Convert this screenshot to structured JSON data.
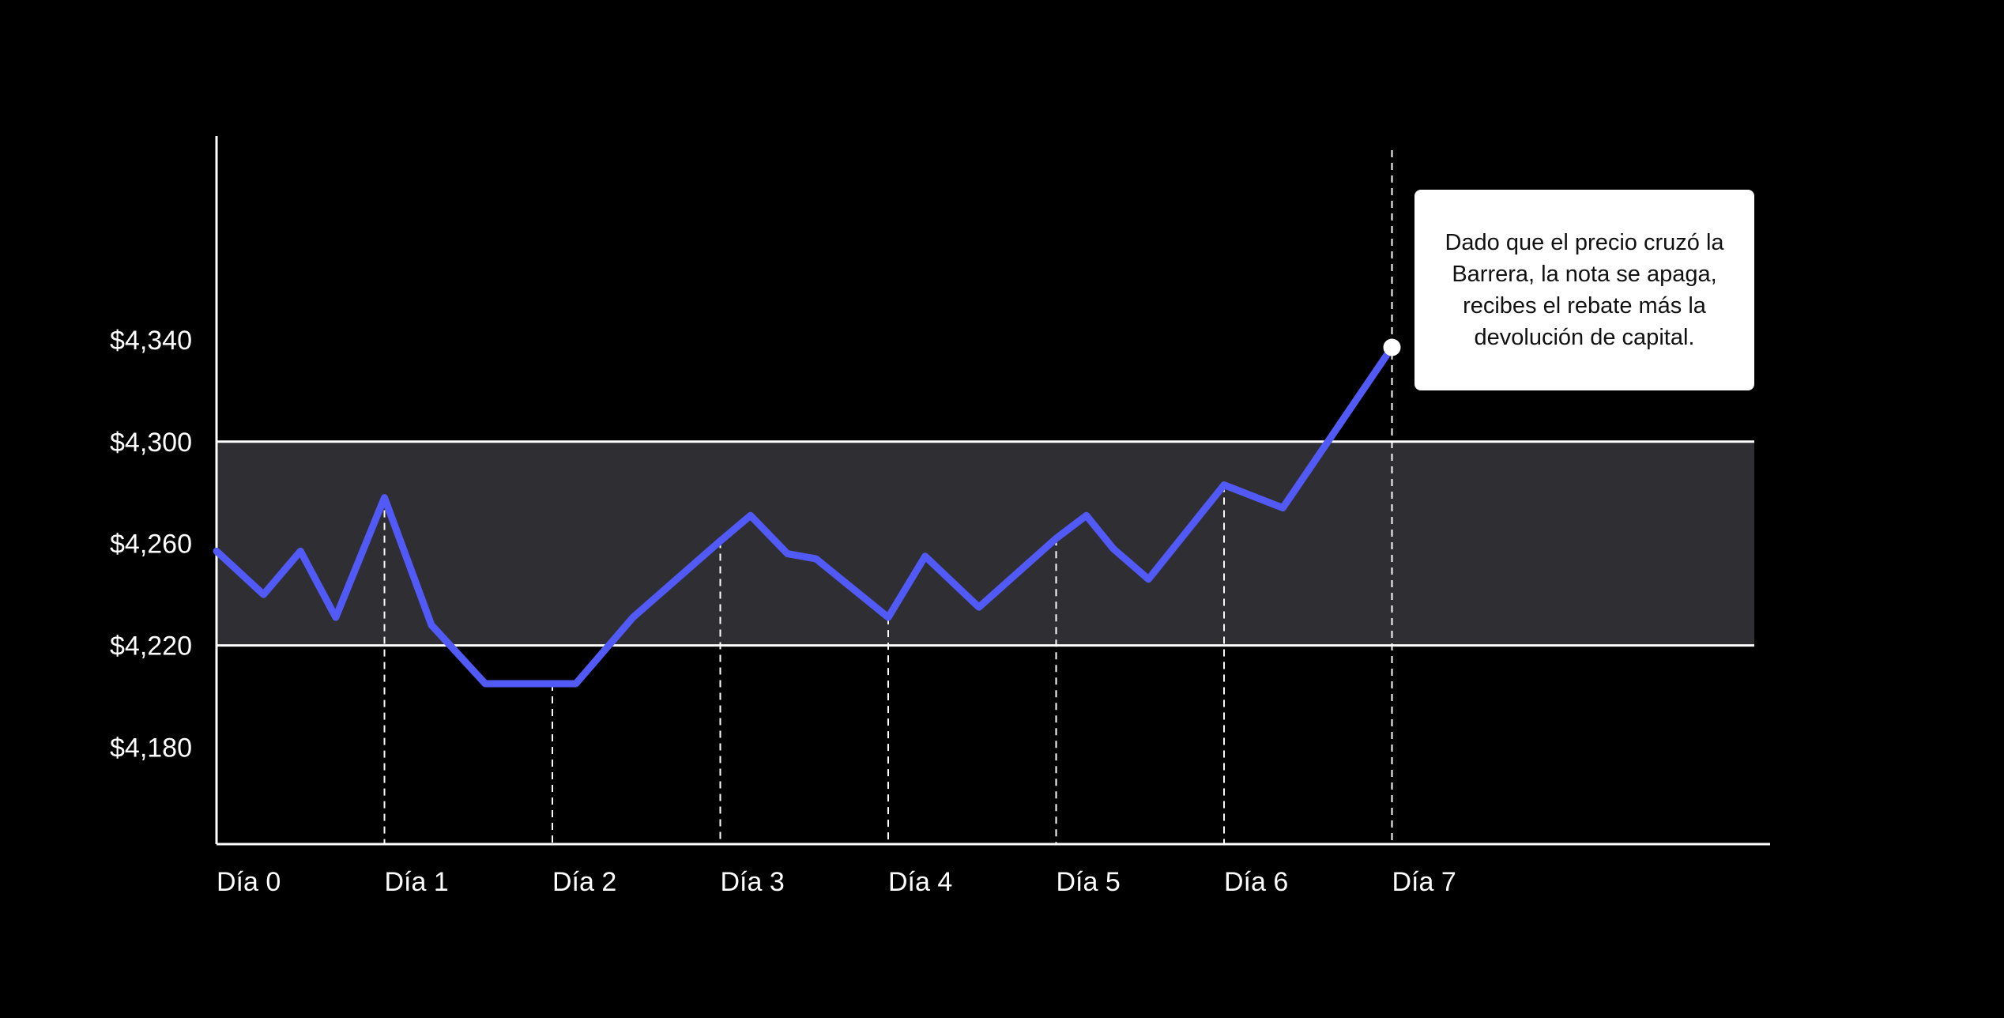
{
  "colors": {
    "background": "#000000",
    "line": "#5159f6",
    "band": "#2f2f33",
    "barrier_lines": "#ffffff",
    "axis": "#ffffff",
    "callout_bg": "#ffffff",
    "callout_text": "#111111"
  },
  "annotation": {
    "text": "Dado que el precio cruzó la Barrera, la nota se apaga, recibes el rebate más la devolución de capital."
  },
  "chart_data": {
    "type": "line",
    "title": "",
    "xlabel": "",
    "ylabel": "",
    "x_ticks": [
      "Día 0",
      "Día 1",
      "Día 2",
      "Día 3",
      "Día 4",
      "Día 5",
      "Día 6",
      "Día 7"
    ],
    "y_ticks": [
      "$4,180",
      "$4,220",
      "$4,260",
      "$4,300",
      "$4,340"
    ],
    "y_tick_values": [
      4180,
      4220,
      4260,
      4300,
      4340
    ],
    "xlim": [
      0,
      8.25
    ],
    "ylim": [
      4142,
      4420
    ],
    "grid": false,
    "barrier_band": {
      "lower": 4220,
      "upper": 4300
    },
    "day_markers": [
      1,
      2,
      3,
      4,
      5,
      6,
      7
    ],
    "series": [
      {
        "x": [
          0,
          0.28,
          0.5,
          0.71,
          1.0,
          1.28,
          1.6,
          2.0,
          2.14,
          2.48,
          3.0,
          3.18,
          3.4,
          3.57,
          4.0,
          4.22,
          4.54,
          5.0,
          5.18,
          5.34,
          5.55,
          6.0,
          6.35,
          7.0
        ],
        "y": [
          4257,
          4240,
          4257,
          4231,
          4278,
          4228,
          4205,
          4205,
          4205,
          4231,
          4261,
          4271,
          4256,
          4254,
          4231,
          4255,
          4235,
          4262,
          4271,
          4258,
          4246,
          4283,
          4274,
          4337
        ]
      }
    ],
    "end_marker": {
      "x": 7.0,
      "y": 4337
    }
  }
}
